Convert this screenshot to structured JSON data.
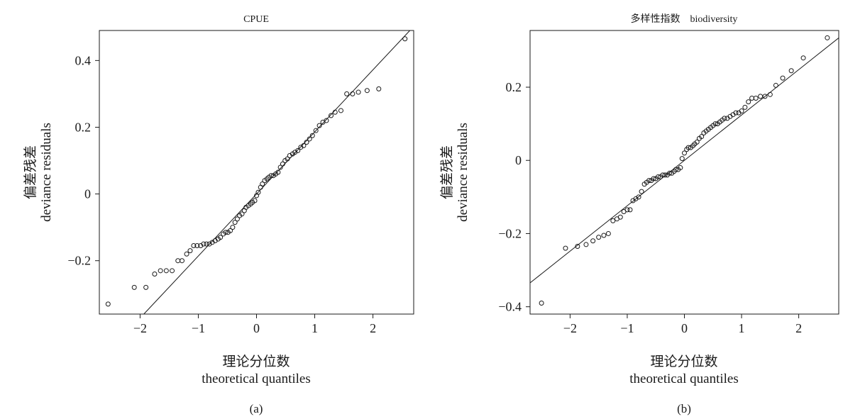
{
  "chart_data": [
    {
      "type": "scatter",
      "panel": "(a)",
      "title": "CPUE",
      "xlabel_cn": "理论分位数",
      "xlabel_en": "theoretical quantiles",
      "ylabel_cn": "偏差残差",
      "ylabel_en": "deviance residuals",
      "xlim": [
        -2.7,
        2.7
      ],
      "ylim": [
        -0.36,
        0.49
      ],
      "xticks": [
        -2,
        -1,
        0,
        1,
        2
      ],
      "xtick_labels": [
        "−2",
        "−1",
        "0",
        "1",
        "2"
      ],
      "yticks": [
        -0.2,
        0,
        0.2,
        0.4
      ],
      "ytick_labels": [
        "−0.2",
        "0",
        "0.2",
        "0.4"
      ],
      "reference_line": {
        "slope": 0.186,
        "intercept": 0.0
      },
      "x": [
        -2.55,
        -2.1,
        -1.9,
        -1.75,
        -1.65,
        -1.55,
        -1.45,
        -1.35,
        -1.28,
        -1.2,
        -1.14,
        -1.08,
        -1.02,
        -0.96,
        -0.91,
        -0.86,
        -0.81,
        -0.76,
        -0.71,
        -0.66,
        -0.62,
        -0.57,
        -0.53,
        -0.49,
        -0.45,
        -0.41,
        -0.37,
        -0.33,
        -0.29,
        -0.25,
        -0.21,
        -0.18,
        -0.14,
        -0.1,
        -0.07,
        -0.03,
        0.0,
        0.03,
        0.07,
        0.1,
        0.14,
        0.18,
        0.21,
        0.25,
        0.29,
        0.33,
        0.37,
        0.41,
        0.45,
        0.49,
        0.53,
        0.57,
        0.62,
        0.66,
        0.71,
        0.76,
        0.81,
        0.86,
        0.91,
        0.96,
        1.02,
        1.08,
        1.14,
        1.2,
        1.28,
        1.35,
        1.45,
        1.55,
        1.65,
        1.75,
        1.9,
        2.1,
        2.55
      ],
      "y": [
        -0.33,
        -0.28,
        -0.28,
        -0.24,
        -0.23,
        -0.23,
        -0.23,
        -0.2,
        -0.2,
        -0.18,
        -0.17,
        -0.155,
        -0.155,
        -0.155,
        -0.15,
        -0.15,
        -0.15,
        -0.145,
        -0.14,
        -0.135,
        -0.13,
        -0.12,
        -0.115,
        -0.115,
        -0.11,
        -0.1,
        -0.085,
        -0.075,
        -0.065,
        -0.06,
        -0.05,
        -0.04,
        -0.035,
        -0.03,
        -0.025,
        -0.02,
        -0.005,
        0.005,
        0.02,
        0.03,
        0.04,
        0.045,
        0.05,
        0.055,
        0.055,
        0.06,
        0.065,
        0.08,
        0.09,
        0.1,
        0.105,
        0.115,
        0.12,
        0.125,
        0.13,
        0.14,
        0.145,
        0.155,
        0.165,
        0.175,
        0.19,
        0.205,
        0.215,
        0.22,
        0.235,
        0.245,
        0.25,
        0.3,
        0.3,
        0.305,
        0.31,
        0.315,
        0.465
      ]
    },
    {
      "type": "scatter",
      "panel": "(b)",
      "title": "多样性指数    biodiversity",
      "xlabel_cn": "理论分位数",
      "xlabel_en": "theoretical quantiles",
      "ylabel_cn": "偏差残差",
      "ylabel_en": "deviance residuals",
      "xlim": [
        -2.7,
        2.7
      ],
      "ylim": [
        -0.42,
        0.355
      ],
      "xticks": [
        -2,
        -1,
        0,
        1,
        2
      ],
      "xtick_labels": [
        "−2",
        "−1",
        "0",
        "1",
        "2"
      ],
      "yticks": [
        -0.4,
        -0.2,
        0,
        0.2
      ],
      "ytick_labels": [
        "−0.4",
        "−0.2",
        "0",
        "0.2"
      ],
      "reference_line": {
        "slope": 0.124,
        "intercept": 0.0
      },
      "x": [
        -2.5,
        -2.08,
        -1.87,
        -1.72,
        -1.6,
        -1.5,
        -1.41,
        -1.33,
        -1.25,
        -1.18,
        -1.12,
        -1.06,
        -1.0,
        -0.95,
        -0.9,
        -0.85,
        -0.8,
        -0.75,
        -0.7,
        -0.66,
        -0.62,
        -0.58,
        -0.54,
        -0.5,
        -0.46,
        -0.42,
        -0.38,
        -0.34,
        -0.3,
        -0.26,
        -0.22,
        -0.18,
        -0.15,
        -0.11,
        -0.07,
        -0.04,
        0.0,
        0.04,
        0.07,
        0.11,
        0.15,
        0.18,
        0.22,
        0.26,
        0.3,
        0.34,
        0.38,
        0.42,
        0.46,
        0.5,
        0.54,
        0.58,
        0.62,
        0.66,
        0.7,
        0.75,
        0.8,
        0.85,
        0.9,
        0.95,
        1.0,
        1.06,
        1.12,
        1.18,
        1.25,
        1.33,
        1.41,
        1.5,
        1.6,
        1.72,
        1.87,
        2.08,
        2.5
      ],
      "y": [
        -0.39,
        -0.24,
        -0.235,
        -0.23,
        -0.22,
        -0.21,
        -0.205,
        -0.2,
        -0.165,
        -0.16,
        -0.155,
        -0.14,
        -0.135,
        -0.135,
        -0.11,
        -0.105,
        -0.1,
        -0.085,
        -0.065,
        -0.06,
        -0.055,
        -0.055,
        -0.05,
        -0.05,
        -0.045,
        -0.045,
        -0.04,
        -0.04,
        -0.04,
        -0.035,
        -0.035,
        -0.03,
        -0.025,
        -0.025,
        -0.02,
        0.005,
        0.02,
        0.03,
        0.035,
        0.035,
        0.04,
        0.045,
        0.05,
        0.06,
        0.065,
        0.075,
        0.08,
        0.085,
        0.09,
        0.095,
        0.1,
        0.1,
        0.105,
        0.11,
        0.115,
        0.115,
        0.12,
        0.125,
        0.13,
        0.13,
        0.135,
        0.145,
        0.16,
        0.17,
        0.17,
        0.175,
        0.175,
        0.18,
        0.205,
        0.225,
        0.245,
        0.28,
        0.335
      ]
    }
  ]
}
